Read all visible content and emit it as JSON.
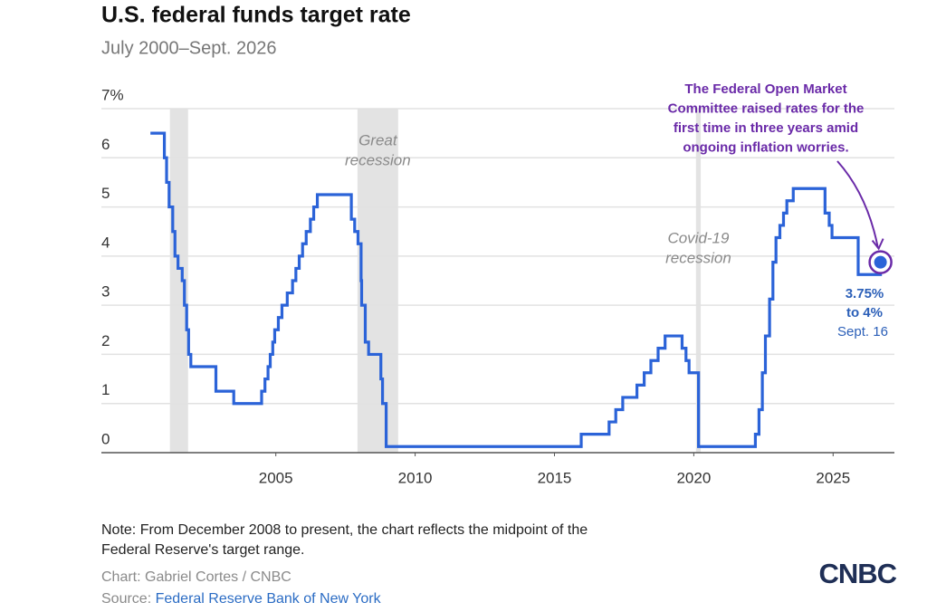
{
  "chart_data": {
    "type": "line",
    "title": "U.S. federal funds target rate",
    "subtitle": "July 2000–Sept. 2026",
    "xlim": [
      1998.74,
      2027.2
    ],
    "xticks": [
      2005,
      2010,
      2015,
      2020,
      2025
    ],
    "ylim": [
      0,
      7
    ],
    "yticks": [
      0,
      1,
      2,
      3,
      4,
      5,
      6,
      {
        "value": 7,
        "label": "7%"
      }
    ],
    "grid": true,
    "step": "post",
    "series": [
      {
        "color": "#2b63d8",
        "x": [
          2000.5,
          2001.0,
          2001.08,
          2001.17,
          2001.3,
          2001.38,
          2001.49,
          2001.64,
          2001.72,
          2001.8,
          2001.87,
          2001.95,
          2002.85,
          2003.49,
          2004.49,
          2004.61,
          2004.72,
          2004.8,
          2004.89,
          2004.96,
          2005.09,
          2005.22,
          2005.41,
          2005.6,
          2005.72,
          2005.84,
          2005.96,
          2006.09,
          2006.24,
          2006.36,
          2006.49,
          2007.71,
          2007.83,
          2007.95,
          2008.06,
          2008.08,
          2008.21,
          2008.33,
          2008.77,
          2008.83,
          2008.96,
          2015.96,
          2016.96,
          2017.2,
          2017.45,
          2017.96,
          2018.22,
          2018.46,
          2018.72,
          2018.97,
          2019.58,
          2019.72,
          2019.83,
          2020.17,
          2022.21,
          2022.34,
          2022.46,
          2022.57,
          2022.72,
          2022.84,
          2022.95,
          2023.09,
          2023.22,
          2023.34,
          2023.57,
          2024.71,
          2024.86,
          2024.96,
          2025.9,
          2026.7
        ],
        "values": [
          6.5,
          6.0,
          5.5,
          5.0,
          4.5,
          4.0,
          3.75,
          3.5,
          3.0,
          2.5,
          2.0,
          1.75,
          1.25,
          1.0,
          1.25,
          1.5,
          1.75,
          2.0,
          2.25,
          2.5,
          2.75,
          3.0,
          3.25,
          3.5,
          3.75,
          4.0,
          4.25,
          4.5,
          4.75,
          5.0,
          5.25,
          4.75,
          4.5,
          4.25,
          3.5,
          3.0,
          2.25,
          2.0,
          1.5,
          1.0,
          0.125,
          0.375,
          0.625,
          0.875,
          1.125,
          1.375,
          1.625,
          1.875,
          2.125,
          2.375,
          2.125,
          1.875,
          1.625,
          0.125,
          0.375,
          0.875,
          1.625,
          2.375,
          3.125,
          3.875,
          4.375,
          4.625,
          4.875,
          5.125,
          5.375,
          4.875,
          4.625,
          4.375,
          3.625,
          3.875
        ]
      }
    ],
    "shaded_regions": [
      {
        "start": 2001.2,
        "end": 2001.85,
        "color": "#e3e3e3"
      },
      {
        "start": 2007.93,
        "end": 2009.39,
        "color": "#e3e3e3",
        "label": [
          "Great",
          "recession"
        ]
      },
      {
        "start": 2020.08,
        "end": 2020.25,
        "color": "#e3e3e3",
        "label": [
          "Covid-19",
          "recession"
        ]
      }
    ],
    "annotation": [
      "The Federal Open Market",
      "Committee raised rates for the",
      "first time in three years amid",
      "ongoing inflation worries."
    ],
    "highlight_label": [
      "3.75%",
      "to 4%"
    ],
    "highlight_date": "Sept. 16",
    "note": [
      "Note: From December 2008 to present, the chart reflects the midpoint of the",
      "Federal Reserve's target range."
    ],
    "credit": "Chart: Gabriel Cortes / CNBC",
    "source_label": "Source:",
    "source": "Federal Reserve Bank of New York",
    "logo": "CNBC"
  }
}
